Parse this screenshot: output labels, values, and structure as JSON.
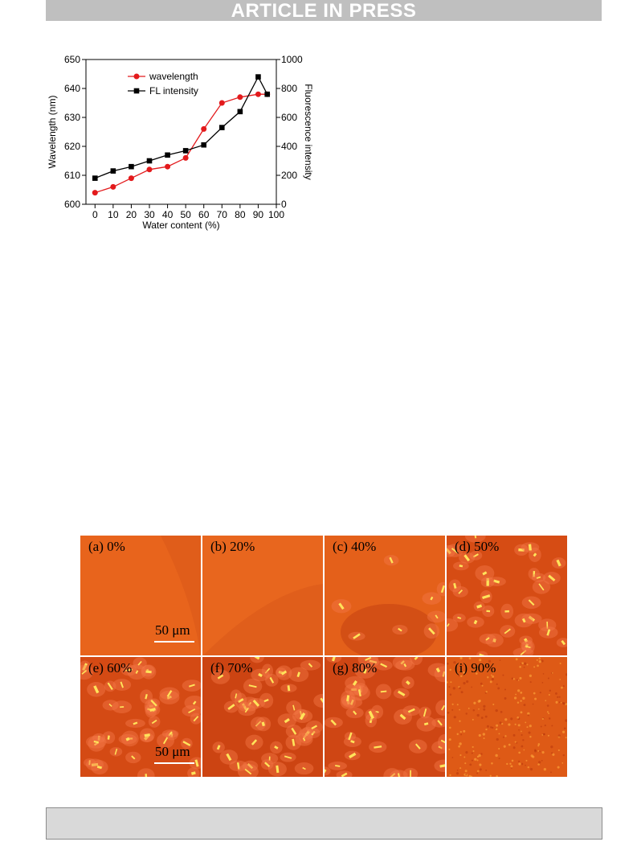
{
  "banner": {
    "text": "ARTICLE IN PRESS"
  },
  "colors": {
    "banner_bg": "#bfbfbf",
    "wavelength": "#e31a1c",
    "fl_intensity": "#000000",
    "footer_bg": "#d9d9d9"
  },
  "chart_data": {
    "type": "line",
    "title": "",
    "xlabel": "Water content (%)",
    "ylabel": "Wavelength (nm)",
    "y2label": "Fluorescence intensity",
    "xlim": [
      -5,
      100
    ],
    "ylim": [
      600,
      650
    ],
    "y2lim": [
      0,
      1000
    ],
    "x_ticks": [
      "0",
      "10",
      "20",
      "30",
      "40",
      "50",
      "60",
      "70",
      "80",
      "90",
      "100"
    ],
    "y_ticks": [
      "600",
      "610",
      "620",
      "630",
      "640",
      "650"
    ],
    "y2_ticks": [
      "0",
      "200",
      "400",
      "600",
      "800",
      "1000"
    ],
    "legend_placement": "top-left",
    "series": [
      {
        "name": "wavelength",
        "axis": "left",
        "marker": "circle",
        "color": "#e31a1c",
        "x": [
          0,
          10,
          20,
          30,
          40,
          50,
          60,
          70,
          80,
          90,
          95
        ],
        "y": [
          604,
          606,
          609,
          612,
          613,
          616,
          626,
          635,
          637,
          638,
          638
        ]
      },
      {
        "name": "FL intensity",
        "axis": "right",
        "marker": "square",
        "color": "#000000",
        "x": [
          0,
          10,
          20,
          30,
          40,
          50,
          60,
          70,
          80,
          90,
          95
        ],
        "y": [
          180,
          230,
          260,
          300,
          340,
          370,
          410,
          530,
          640,
          880,
          760
        ]
      }
    ]
  },
  "figure": {
    "panels": [
      {
        "label": "(a) 0%",
        "scale": "50 μm",
        "base": "#e8641c",
        "particles": 0
      },
      {
        "label": "(b) 20%",
        "scale": "",
        "base": "#e8661e",
        "particles": 0
      },
      {
        "label": "(c) 40%",
        "scale": "",
        "base": "#e4601a",
        "particles": 8
      },
      {
        "label": "(d) 50%",
        "scale": "",
        "base": "#d64c14",
        "particles": 40
      },
      {
        "label": "(e) 60%",
        "scale": "50 μm",
        "base": "#d44a14",
        "particles": 45
      },
      {
        "label": "(f) 70%",
        "scale": "",
        "base": "#cc4412",
        "particles": 45
      },
      {
        "label": "(g) 80%",
        "scale": "",
        "base": "#cf4614",
        "particles": 45
      },
      {
        "label": "(i) 90%",
        "scale": "",
        "base": "#de5a16",
        "particles": 0
      }
    ]
  }
}
